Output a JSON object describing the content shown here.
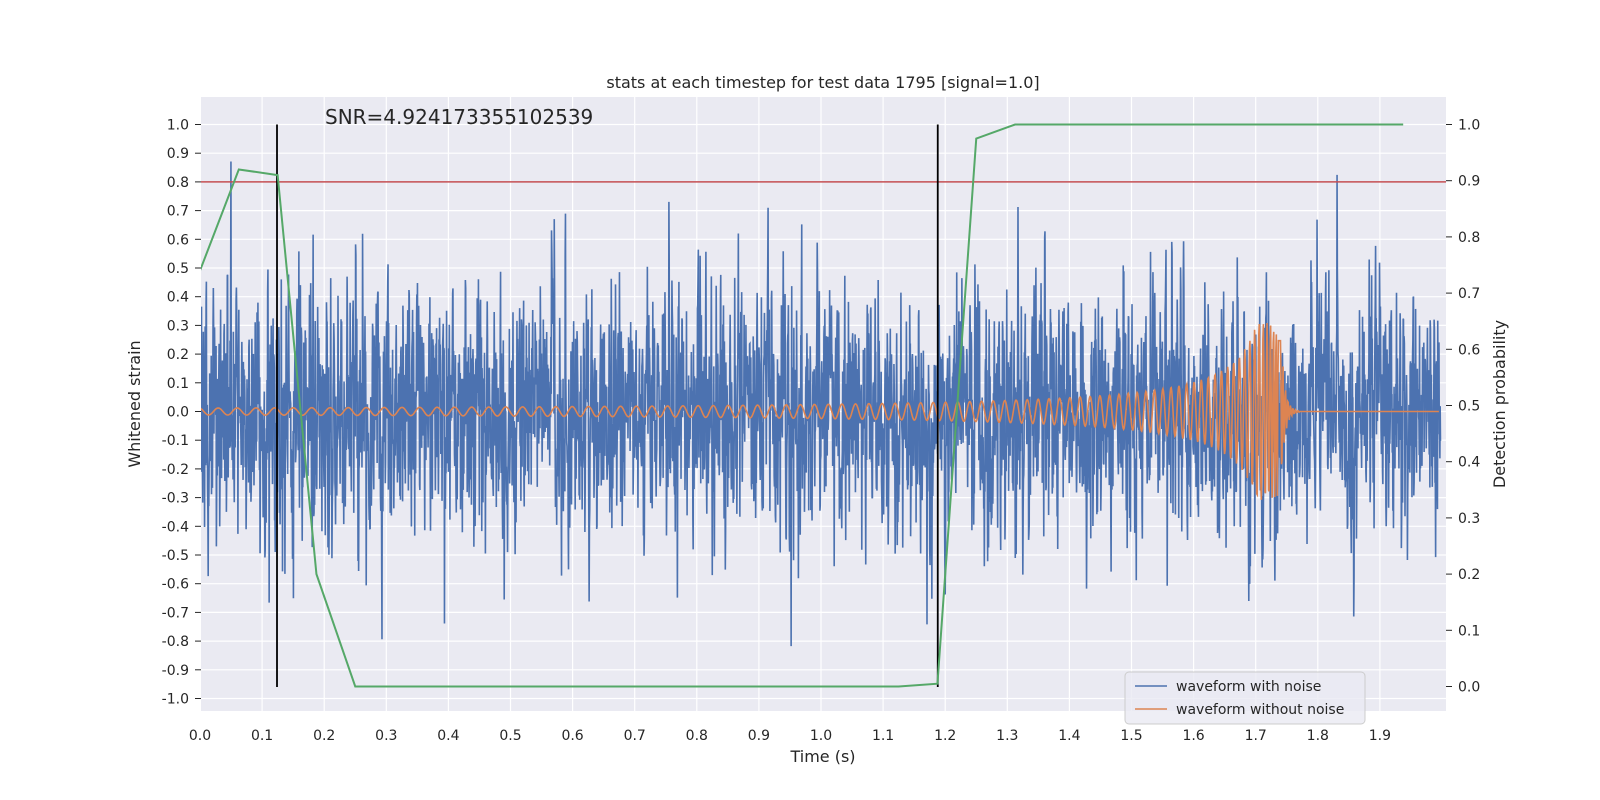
{
  "chart_data": {
    "type": "line",
    "title": "stats at each timestep for test data 1795 [signal=1.0]",
    "xlabel": "Time (s)",
    "ylabel": "Whitened strain",
    "y2label": "Detection probability",
    "xlim": [
      0.0,
      2.0
    ],
    "ylim": [
      -1.05,
      1.05
    ],
    "y2lim": [
      -0.05,
      1.05
    ],
    "x_ticks": [
      "0.0",
      "0.1",
      "0.2",
      "0.3",
      "0.4",
      "0.5",
      "0.6",
      "0.7",
      "0.8",
      "0.9",
      "1.0",
      "1.1",
      "1.2",
      "1.3",
      "1.4",
      "1.5",
      "1.6",
      "1.7",
      "1.8",
      "1.9"
    ],
    "y_ticks": [
      "1.0",
      "0.9",
      "0.8",
      "0.7",
      "0.6",
      "0.5",
      "0.4",
      "0.3",
      "0.2",
      "0.1",
      "0.0",
      "-0.1",
      "-0.2",
      "-0.3",
      "-0.4",
      "-0.5",
      "-0.6",
      "-0.7",
      "-0.8",
      "-0.9",
      "-1.0"
    ],
    "y2_ticks": [
      "1.0",
      "0.9",
      "0.8",
      "0.7",
      "0.6",
      "0.5",
      "0.4",
      "0.3",
      "0.2",
      "0.1",
      "0.0"
    ],
    "grid": true,
    "annotation": "SNR=4.924173355102539",
    "threshold": {
      "y": 0.8,
      "color": "#c44e52"
    },
    "vlines": [
      {
        "x": 0.124,
        "y_from": -0.96,
        "y_to": 1.0
      },
      {
        "x": 1.188,
        "y_from": -0.96,
        "y_to": 1.0
      }
    ],
    "legend": {
      "position": "lower-right",
      "entries": [
        {
          "label": "waveform with noise",
          "color": "#4c72b0"
        },
        {
          "label": "waveform without noise",
          "color": "#dd8452"
        }
      ]
    },
    "series": [
      {
        "name": "waveform with noise",
        "color": "#4c72b0",
        "axis": "left",
        "generated": true,
        "n_points": 4096,
        "x_range": [
          0.0,
          2.0
        ],
        "amplitude_range": [
          -0.96,
          1.0
        ]
      },
      {
        "name": "waveform without noise",
        "color": "#dd8452",
        "axis": "left",
        "generated": true,
        "description": "chirp signal, merger peak at 1.74 s",
        "peak_x": 1.74,
        "peak_amplitude": 0.31
      },
      {
        "name": "detection probability",
        "color": "#55a868",
        "axis": "right",
        "x": [
          0.0,
          0.0625,
          0.125,
          0.1875,
          0.25,
          0.3125,
          0.375,
          0.4375,
          0.5,
          0.5625,
          0.625,
          0.6875,
          0.75,
          0.8125,
          0.875,
          0.9375,
          1.0,
          1.0625,
          1.125,
          1.1875,
          1.25,
          1.3125,
          1.375,
          1.4375,
          1.5,
          1.5625,
          1.625,
          1.6875,
          1.75,
          1.8125,
          1.875,
          1.9375
        ],
        "values": [
          0.74,
          0.92,
          0.91,
          0.2,
          0.0,
          0.0,
          0.0,
          0.0,
          0.0,
          0.0,
          0.0,
          0.0,
          0.0,
          0.0,
          0.0,
          0.0,
          0.0,
          0.0,
          0.0,
          0.005,
          0.975,
          1.0,
          1.0,
          1.0,
          1.0,
          1.0,
          1.0,
          1.0,
          1.0,
          1.0,
          1.0,
          1.0
        ]
      }
    ]
  }
}
